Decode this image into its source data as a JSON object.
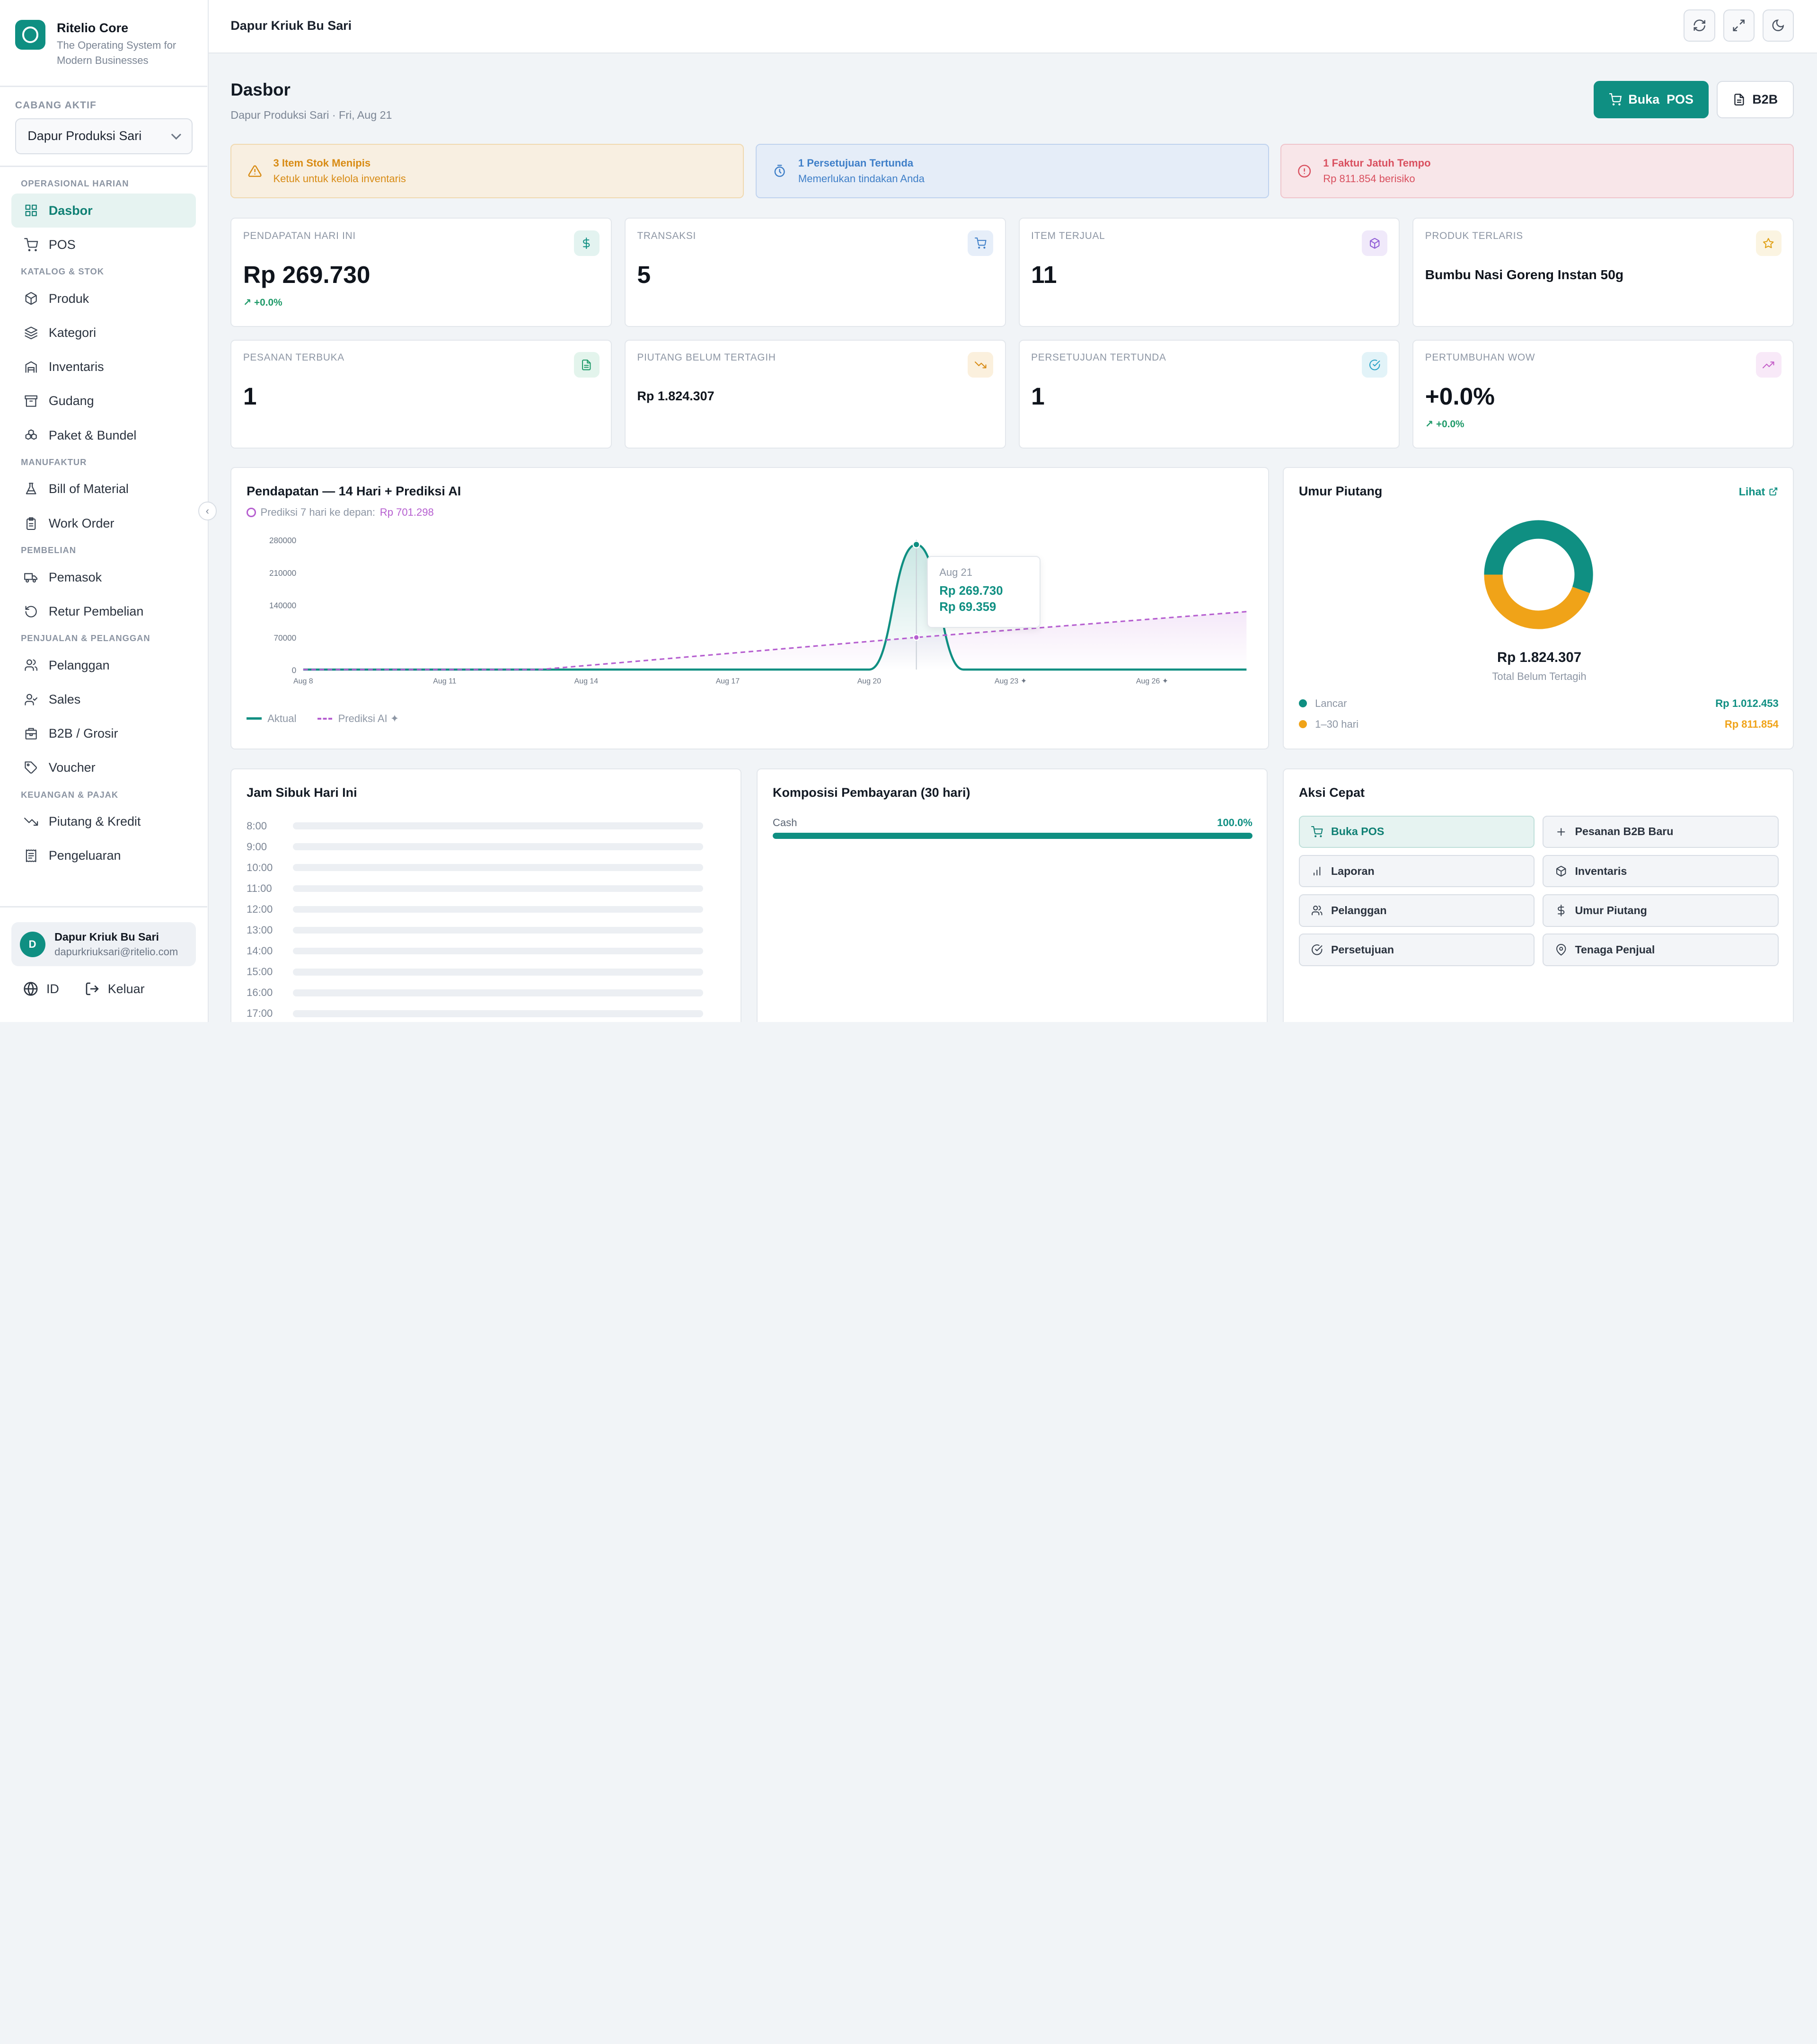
{
  "brand": {
    "name": "Ritelio Core",
    "tagline": "The Operating System for Modern Businesses"
  },
  "branch": {
    "label": "CABANG AKTIF",
    "selected": "Dapur Produksi Sari"
  },
  "nav": {
    "sections": [
      {
        "title": "OPERASIONAL HARIAN",
        "items": [
          {
            "label": "Dasbor",
            "icon": "grid-icon",
            "active": true
          },
          {
            "label": "POS",
            "icon": "cart-icon"
          }
        ]
      },
      {
        "title": "KATALOG & STOK",
        "items": [
          {
            "label": "Produk",
            "icon": "box-icon"
          },
          {
            "label": "Kategori",
            "icon": "layers-icon"
          },
          {
            "label": "Inventaris",
            "icon": "warehouse-icon"
          },
          {
            "label": "Gudang",
            "icon": "archive-icon"
          },
          {
            "label": "Paket & Bundel",
            "icon": "boxes-icon"
          }
        ]
      },
      {
        "title": "MANUFAKTUR",
        "items": [
          {
            "label": "Bill of Material",
            "icon": "flask-icon"
          },
          {
            "label": "Work Order",
            "icon": "clipboard-icon"
          }
        ]
      },
      {
        "title": "PEMBELIAN",
        "items": [
          {
            "label": "Pemasok",
            "icon": "truck-icon"
          },
          {
            "label": "Retur Pembelian",
            "icon": "undo-icon"
          }
        ]
      },
      {
        "title": "PENJUALAN & PELANGGAN",
        "items": [
          {
            "label": "Pelanggan",
            "icon": "users-icon"
          },
          {
            "label": "Sales",
            "icon": "user-check-icon"
          },
          {
            "label": "B2B / Grosir",
            "icon": "building-icon"
          },
          {
            "label": "Voucher",
            "icon": "tag-icon"
          }
        ]
      },
      {
        "title": "KEUANGAN & PAJAK",
        "items": [
          {
            "label": "Piutang & Kredit",
            "icon": "trend-down-icon"
          },
          {
            "label": "Pengeluaran",
            "icon": "receipt-icon"
          }
        ]
      }
    ]
  },
  "user": {
    "initial": "D",
    "name": "Dapur Kriuk Bu Sari",
    "email": "dapurkriuksari@ritelio.com"
  },
  "footer": {
    "lang": "ID",
    "logout": "Keluar"
  },
  "topbar": {
    "title": "Dapur Kriuk Bu Sari"
  },
  "header": {
    "title": "Dasbor",
    "subtitle": "Dapur Produksi Sari · Fri, Aug 21",
    "pos_button": "Buka  POS",
    "b2b_button": "B2B"
  },
  "alerts": [
    {
      "kind": "warn",
      "title": "3 Item Stok Menipis",
      "subtitle": "Ketuk untuk kelola inventaris"
    },
    {
      "kind": "info",
      "title": "1 Persetujuan Tertunda",
      "subtitle": "Memerlukan tindakan Anda"
    },
    {
      "kind": "danger",
      "title": "1 Faktur Jatuh Tempo",
      "subtitle": "Rp 811.854 berisiko"
    }
  ],
  "kpis": [
    {
      "label": "PENDAPATAN HARI INI",
      "value": "Rp 269.730",
      "delta": "+0.0%",
      "icon": "dollar-icon",
      "color": "#0f8f82",
      "bg": "#e3f3f0",
      "size": "lg"
    },
    {
      "label": "TRANSAKSI",
      "value": "5",
      "delta": "",
      "icon": "cart-icon",
      "color": "#3f7fc8",
      "bg": "#e6eef9",
      "size": "lg"
    },
    {
      "label": "ITEM TERJUAL",
      "value": "11",
      "delta": "",
      "icon": "box-icon",
      "color": "#8f5cd6",
      "bg": "#f0e9fa",
      "size": "lg"
    },
    {
      "label": "PRODUK TERLARIS",
      "value": "Bumbu Nasi Goreng Instan 50g",
      "delta": "",
      "icon": "star-icon",
      "color": "#e0a014",
      "bg": "#fbf4e1",
      "size": "md"
    },
    {
      "label": "PESANAN TERBUKA",
      "value": "1",
      "delta": "",
      "icon": "file-icon",
      "color": "#1f9a69",
      "bg": "#e3f4ec",
      "size": "lg"
    },
    {
      "label": "PIUTANG BELUM TERTAGIH",
      "value": "Rp 1.824.307",
      "delta": "",
      "icon": "trend-down-icon",
      "color": "#d88b14",
      "bg": "#fbf0dd",
      "size": "sm"
    },
    {
      "label": "PERSETUJUAN TERTUNDA",
      "value": "1",
      "delta": "",
      "icon": "check-circle-icon",
      "color": "#2aa3c7",
      "bg": "#e2f3f8",
      "size": "lg"
    },
    {
      "label": "PERTUMBUHAN WOW",
      "value": "+0.0%",
      "delta": "+0.0%",
      "icon": "trend-up-icon",
      "color": "#c45fc8",
      "bg": "#f8e9f8",
      "size": "lg"
    }
  ],
  "revenue": {
    "title": "Pendapatan — 14 Hari + Prediksi AI",
    "forecast_label": "Prediksi 7 hari ke depan:",
    "forecast_value": "Rp 701.298",
    "legend_actual": "Aktual",
    "legend_forecast": "Prediksi AI ✦",
    "tooltip": {
      "date": "Aug 21",
      "actual": "Rp 269.730",
      "forecast": "Rp 69.359"
    }
  },
  "chart_data": {
    "type": "line",
    "title": "Pendapatan — 14 Hari + Prediksi AI",
    "x_ticks": [
      "Aug 8",
      "Aug 11",
      "Aug 14",
      "Aug 17",
      "Aug 20",
      "Aug 23 ✦",
      "Aug 26 ✦"
    ],
    "y_ticks": [
      "0",
      "70000",
      "140000",
      "210000",
      "280000"
    ],
    "ylim": [
      0,
      280000
    ],
    "x_days": [
      8,
      28
    ],
    "series": [
      {
        "name": "Aktual",
        "color": "#0f8f82",
        "style": "solid",
        "points": [
          [
            8,
            0
          ],
          [
            9,
            0
          ],
          [
            10,
            0
          ],
          [
            11,
            0
          ],
          [
            12,
            0
          ],
          [
            13,
            0
          ],
          [
            14,
            0
          ],
          [
            15,
            0
          ],
          [
            16,
            0
          ],
          [
            17,
            0
          ],
          [
            18,
            0
          ],
          [
            19,
            0
          ],
          [
            20,
            0
          ],
          [
            21,
            269730
          ],
          [
            22,
            0
          ],
          [
            23,
            0
          ],
          [
            24,
            0
          ],
          [
            25,
            0
          ],
          [
            26,
            0
          ],
          [
            27,
            0
          ],
          [
            28,
            0
          ]
        ]
      },
      {
        "name": "Prediksi AI ✦",
        "color": "#b65fd0",
        "style": "dashed",
        "points": [
          [
            8,
            0
          ],
          [
            13,
            0
          ],
          [
            21,
            69359
          ],
          [
            28,
            125000
          ]
        ]
      }
    ],
    "grid": false,
    "legend": "bottom-left"
  },
  "aging": {
    "title": "Umur Piutang",
    "link": "Lihat",
    "total": "Rp 1.824.307",
    "total_label": "Total Belum Tertagih",
    "buckets": [
      {
        "label": "Lancar",
        "value": "Rp 1.012.453",
        "amount": 1012453,
        "color": "#0f8f82"
      },
      {
        "label": "1–30 hari",
        "value": "Rp 811.854",
        "amount": 811854,
        "color": "#f0a318"
      }
    ]
  },
  "peak": {
    "title": "Jam Sibuk Hari Ini",
    "hours": [
      "8:00",
      "9:00",
      "10:00",
      "11:00",
      "12:00",
      "13:00",
      "14:00",
      "15:00",
      "16:00",
      "17:00"
    ]
  },
  "payments": {
    "title": "Komposisi Pembayaran (30 hari)",
    "items": [
      {
        "label": "Cash",
        "percent_label": "100.0%",
        "percent": 100
      }
    ]
  },
  "quick": {
    "title": "Aksi Cepat",
    "actions": [
      {
        "label": "Buka POS",
        "icon": "cart-icon",
        "active": true
      },
      {
        "label": "Pesanan B2B Baru",
        "icon": "plus-icon"
      },
      {
        "label": "Laporan",
        "icon": "bar-chart-icon"
      },
      {
        "label": "Inventaris",
        "icon": "box-icon"
      },
      {
        "label": "Pelanggan",
        "icon": "users-icon"
      },
      {
        "label": "Umur Piutang",
        "icon": "dollar-icon"
      },
      {
        "label": "Persetujuan",
        "icon": "check-circle-icon"
      },
      {
        "label": "Tenaga Penjual",
        "icon": "map-pin-icon"
      }
    ]
  }
}
